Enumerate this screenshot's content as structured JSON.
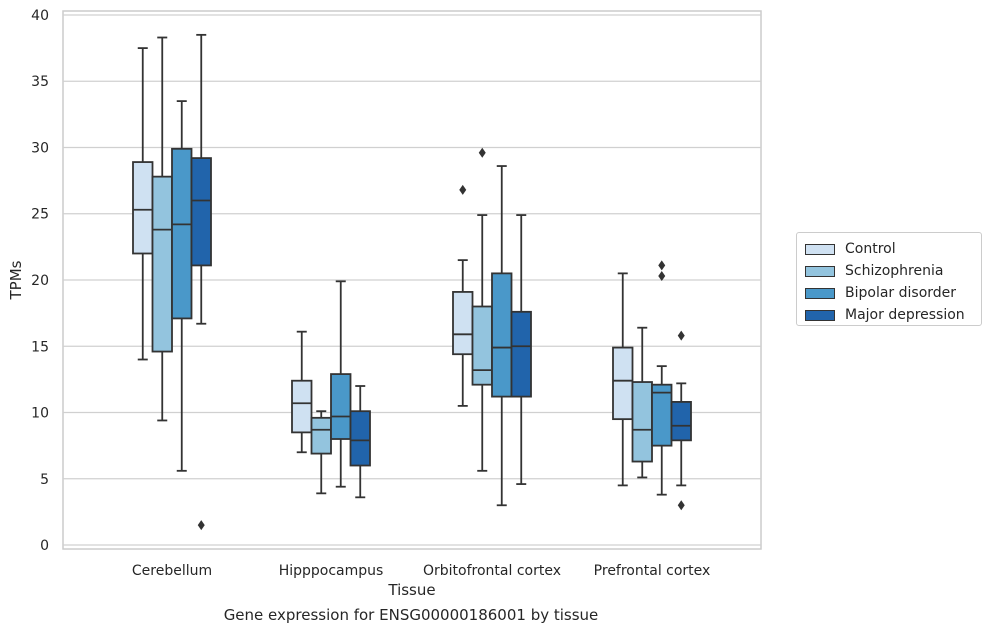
{
  "chart_data": {
    "type": "box",
    "title": "",
    "xlabel": "Tissue",
    "ylabel": "TPMs",
    "ylim": [
      0,
      40
    ],
    "yticks": [
      0,
      5,
      10,
      15,
      20,
      25,
      30,
      35,
      40
    ],
    "grid": "horizontal",
    "legend_position": "right",
    "categories": [
      "Cerebellum",
      "Hipppocampus",
      "Orbitofrontal cortex",
      "Prefrontal cortex"
    ],
    "series": [
      {
        "name": "Control",
        "color": "#cfe1f2",
        "boxes": [
          {
            "whisker_low": 14.0,
            "q1": 22.0,
            "median": 25.3,
            "q3": 28.9,
            "whisker_high": 37.5,
            "outliers": []
          },
          {
            "whisker_low": 7.0,
            "q1": 8.5,
            "median": 10.7,
            "q3": 12.4,
            "whisker_high": 16.1,
            "outliers": []
          },
          {
            "whisker_low": 10.5,
            "q1": 14.4,
            "median": 15.9,
            "q3": 19.1,
            "whisker_high": 21.5,
            "outliers": [
              26.8
            ]
          },
          {
            "whisker_low": 4.5,
            "q1": 9.5,
            "median": 12.4,
            "q3": 14.9,
            "whisker_high": 20.5,
            "outliers": []
          }
        ]
      },
      {
        "name": "Schizophrenia",
        "color": "#93c4de",
        "boxes": [
          {
            "whisker_low": 9.4,
            "q1": 14.6,
            "median": 23.8,
            "q3": 27.8,
            "whisker_high": 38.3,
            "outliers": []
          },
          {
            "whisker_low": 3.9,
            "q1": 6.9,
            "median": 8.7,
            "q3": 9.6,
            "whisker_high": 10.1,
            "outliers": []
          },
          {
            "whisker_low": 5.6,
            "q1": 12.1,
            "median": 13.2,
            "q3": 18.0,
            "whisker_high": 24.9,
            "outliers": [
              29.6
            ]
          },
          {
            "whisker_low": 5.1,
            "q1": 6.3,
            "median": 8.7,
            "q3": 12.3,
            "whisker_high": 16.4,
            "outliers": []
          }
        ]
      },
      {
        "name": "Bipolar disorder",
        "color": "#4a98c9",
        "boxes": [
          {
            "whisker_low": 5.6,
            "q1": 17.1,
            "median": 24.2,
            "q3": 29.9,
            "whisker_high": 33.5,
            "outliers": []
          },
          {
            "whisker_low": 4.4,
            "q1": 8.0,
            "median": 9.7,
            "q3": 12.9,
            "whisker_high": 19.9,
            "outliers": []
          },
          {
            "whisker_low": 3.0,
            "q1": 11.2,
            "median": 14.9,
            "q3": 20.5,
            "whisker_high": 28.6,
            "outliers": []
          },
          {
            "whisker_low": 3.8,
            "q1": 7.5,
            "median": 11.5,
            "q3": 12.1,
            "whisker_high": 13.5,
            "outliers": [
              20.3,
              21.1
            ]
          }
        ]
      },
      {
        "name": "Major depression",
        "color": "#2164ab",
        "boxes": [
          {
            "whisker_low": 16.7,
            "q1": 21.1,
            "median": 26.0,
            "q3": 29.2,
            "whisker_high": 38.5,
            "outliers": [
              1.5
            ]
          },
          {
            "whisker_low": 3.6,
            "q1": 6.0,
            "median": 7.9,
            "q3": 10.1,
            "whisker_high": 12.0,
            "outliers": []
          },
          {
            "whisker_low": 4.6,
            "q1": 11.2,
            "median": 15.0,
            "q3": 17.6,
            "whisker_high": 24.9,
            "outliers": []
          },
          {
            "whisker_low": 4.5,
            "q1": 7.9,
            "median": 9.0,
            "q3": 10.8,
            "whisker_high": 12.2,
            "outliers": [
              3.0,
              15.8
            ]
          }
        ]
      }
    ]
  },
  "caption": "Gene expression for ENSG00000186001 by tissue"
}
